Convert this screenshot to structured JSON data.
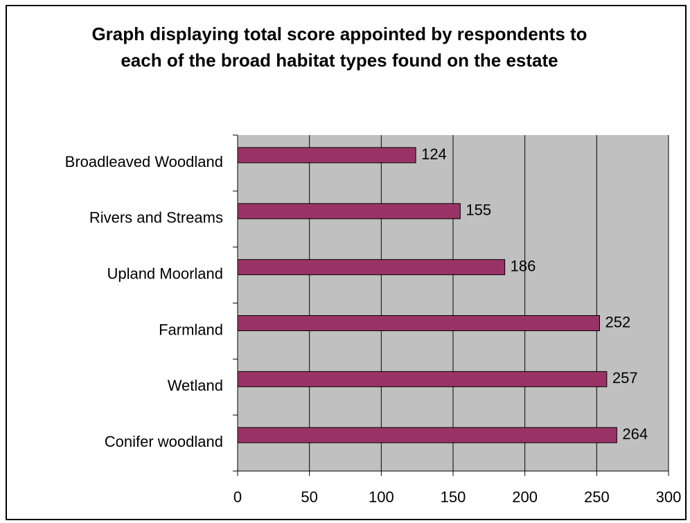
{
  "chart_data": {
    "type": "bar",
    "orientation": "horizontal",
    "title": "Graph displaying total score appointed by respondents to each of the broad habitat types found on the estate",
    "categories": [
      "Broadleaved Woodland",
      "Rivers and Streams",
      "Upland Moorland",
      "Farmland",
      "Wetland",
      "Conifer woodland"
    ],
    "values": [
      124,
      155,
      186,
      252,
      257,
      264
    ],
    "color": "#993366",
    "xlim": [
      0,
      300
    ],
    "xticks": [
      0,
      50,
      100,
      150,
      200,
      250,
      300
    ],
    "grid": true
  }
}
